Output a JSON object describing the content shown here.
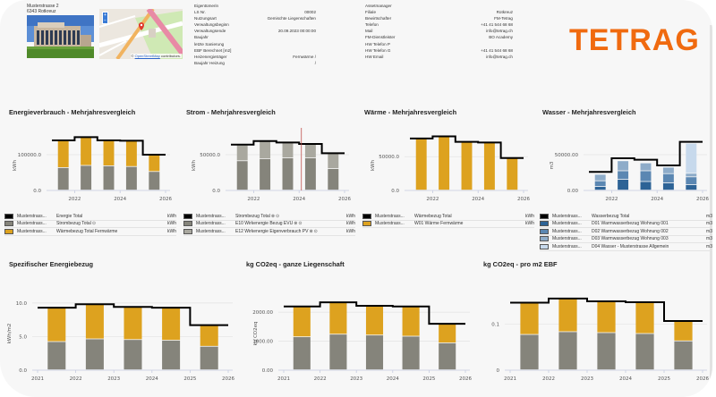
{
  "header": {
    "address_line1": "Musterstrasse 2",
    "address_line2": "6343 Rotkreuz",
    "map": {
      "zoom_in": "+",
      "zoom_out": "−",
      "attribution_prefix": "©",
      "attribution_link": "OpenStreetMap",
      "attribution_suffix": "contributors."
    },
    "property_info": [
      {
        "label": "Eigentümerin",
        "value": ""
      },
      {
        "label": "LS Nr.",
        "value": "00002"
      },
      {
        "label": "Nutzungsart",
        "value": "Gemischte Liegenschaften"
      },
      {
        "label": "Verwaltungsbeginn",
        "value": ""
      },
      {
        "label": "Verwaltungsende",
        "value": "20.09.2023 00:00:00"
      },
      {
        "label": "Baujahr",
        "value": ""
      },
      {
        "label": "letzte Sanierung",
        "value": ""
      },
      {
        "label": "EBF Berechnet [m2]",
        "value": ""
      },
      {
        "label": "Heizenergieträger",
        "value": "Fernwärme /"
      },
      {
        "label": "Baujahr Heizung",
        "value": "/"
      }
    ],
    "contact_info": [
      {
        "label": "Assetmanager",
        "value": ""
      },
      {
        "label": "Filiale",
        "value": "Rotkreuz"
      },
      {
        "label": "Bewirtschafter",
        "value": "FM-Tetrag"
      },
      {
        "label": "Telefon",
        "value": "+41 41 544 68 68"
      },
      {
        "label": "Mail",
        "value": "info@tetrag.ch"
      },
      {
        "label": "FM-Dienstleister",
        "value": "BO Academy"
      },
      {
        "label": "HW Telefon P",
        "value": ""
      },
      {
        "label": "HW Telefon G",
        "value": "+41 41 544 68 68"
      },
      {
        "label": "HW Email",
        "value": "info@tetrag.ch"
      }
    ],
    "logo": "TETRAG"
  },
  "colors": {
    "total_line": "#000000",
    "strom": "#85847b",
    "waerme": "#dda21f",
    "strom_light": "#a9a89f",
    "wasser_d01": "#2d6396",
    "wasser_d02": "#5b87b2",
    "wasser_d03": "#8eacc9",
    "wasser_d04": "#c7d9ec",
    "pv_marker": "#c0504d",
    "grid": "#e6e6e6",
    "axis": "#c5cbe0",
    "logo": "#f06a0f"
  },
  "chart_data": [
    {
      "id": "energie",
      "type": "bar",
      "title": "Energieverbrauch - Mehrjahresvergleich",
      "ylabel": "kWh",
      "xlabel": "",
      "ylim": [
        0,
        170000
      ],
      "yticks": [
        {
          "v": 0,
          "label": "0.0"
        },
        {
          "v": 100000,
          "label": "100000.0"
        }
      ],
      "xticks": [
        "2022",
        "2024",
        "2026"
      ],
      "x_range": [
        2021,
        2026
      ],
      "categories": [
        "2021",
        "2022",
        "2023",
        "2024",
        "2025"
      ],
      "stacked": true,
      "series": [
        {
          "name": "Strombezug Total",
          "color_key": "strom",
          "values": [
            63000,
            69000,
            68000,
            66000,
            52000
          ]
        },
        {
          "name": "Wärmebezug Total Fernwärme",
          "color_key": "waerme",
          "values": [
            77000,
            80000,
            72000,
            73000,
            48000
          ]
        }
      ],
      "total_line": {
        "name": "Energie Total",
        "values": [
          140000,
          149000,
          140000,
          139000,
          100000
        ]
      },
      "legend": [
        {
          "source": "Musterstrass...",
          "name": "Energie Total",
          "unit": "kWh",
          "color_key": "total_line",
          "icons": []
        },
        {
          "source": "Musterstrass...",
          "name": "Strombezug Total",
          "unit": "kWh",
          "color_key": "strom",
          "icons": [
            "info"
          ]
        },
        {
          "source": "Musterstrass...",
          "name": "Wärmebezug Total Fernwärme",
          "unit": "kWh",
          "color_key": "waerme",
          "icons": []
        }
      ]
    },
    {
      "id": "strom",
      "type": "bar",
      "title": "Strom - Mehrjahresvergleich",
      "ylabel": "kWh",
      "xlabel": "",
      "ylim": [
        0,
        85000
      ],
      "yticks": [
        {
          "v": 0,
          "label": "0.0"
        },
        {
          "v": 50000,
          "label": "50000.0"
        }
      ],
      "xticks": [
        "2022",
        "2024",
        "2026"
      ],
      "x_range": [
        2021,
        2026
      ],
      "categories": [
        "2021",
        "2022",
        "2023",
        "2024",
        "2025"
      ],
      "stacked": true,
      "series": [
        {
          "name": "E10 Wirkenergie Bezug EVU",
          "color_key": "strom",
          "values": [
            41000,
            44000,
            45000,
            45000,
            30000
          ]
        },
        {
          "name": "E12 Wirkenergie Eigenverbrauch PV",
          "color_key": "strom_light",
          "values": [
            22000,
            25000,
            21000,
            20000,
            22000
          ]
        }
      ],
      "total_line": {
        "name": "Strombezug Total",
        "values": [
          64000,
          69000,
          67000,
          65000,
          52000
        ]
      },
      "marker_x": 2024.1,
      "legend": [
        {
          "source": "Musterstrass...",
          "name": "Strombezug Total",
          "unit": "kWh",
          "color_key": "total_line",
          "icons": [
            "x-circle",
            "info"
          ]
        },
        {
          "source": "Musterstrass...",
          "name": "E10 Wirkenergie Bezug EVU",
          "unit": "kWh",
          "color_key": "strom",
          "icons": [
            "x-circle",
            "info"
          ]
        },
        {
          "source": "Musterstrass...",
          "name": "E12 Wirkenergie Eigenverbrauch PV",
          "unit": "kWh",
          "color_key": "strom_light",
          "icons": [
            "x-circle",
            "info"
          ]
        }
      ]
    },
    {
      "id": "waerme",
      "type": "bar",
      "title": "Wärme - Mehrjahresvergleich",
      "ylabel": "kWh",
      "xlabel": "",
      "ylim": [
        0,
        90000
      ],
      "yticks": [
        {
          "v": 0,
          "label": "0.0"
        },
        {
          "v": 50000,
          "label": "50000.0"
        }
      ],
      "xticks": [
        "2022",
        "2024",
        "2026"
      ],
      "x_range": [
        2021,
        2026
      ],
      "categories": [
        "2021",
        "2022",
        "2023",
        "2024",
        "2025"
      ],
      "stacked": true,
      "series": [
        {
          "name": "W01 Wärme Fernwärme",
          "color_key": "waerme",
          "values": [
            76000,
            80000,
            72000,
            72000,
            48000
          ]
        }
      ],
      "total_line": {
        "name": "Wärmebezug Total",
        "values": [
          77000,
          80000,
          72000,
          71000,
          48000
        ]
      },
      "legend": [
        {
          "source": "Musterstrass...",
          "name": "Wärmebezug Total",
          "unit": "kWh",
          "color_key": "total_line",
          "icons": []
        },
        {
          "source": "Musterstrass...",
          "name": "W01 Wärme Fernwärme",
          "unit": "kWh",
          "color_key": "waerme",
          "icons": []
        }
      ]
    },
    {
      "id": "wasser",
      "type": "bar",
      "title": "Wasser - Mehrjahresvergleich",
      "ylabel": "m3",
      "xlabel": "",
      "ylim": [
        0,
        85000
      ],
      "yticks": [
        {
          "v": 0,
          "label": "0.00"
        },
        {
          "v": 50000,
          "label": "50000.00"
        }
      ],
      "xticks": [
        "2022",
        "2024",
        "2026"
      ],
      "x_range": [
        2021,
        2026
      ],
      "categories": [
        "2021",
        "2022",
        "2023",
        "2024",
        "2025"
      ],
      "stacked": true,
      "series": [
        {
          "name": "D01 Warmwasserbezug Wohnung 001",
          "color_key": "wasser_d01",
          "values": [
            5000,
            15000,
            12000,
            10000,
            7500
          ]
        },
        {
          "name": "D02 Warmwasserbezug Wohnung 002",
          "color_key": "wasser_d02",
          "values": [
            8000,
            12000,
            15000,
            13000,
            11000
          ]
        },
        {
          "name": "D03 Warmwasserbezug Wohnung 003",
          "color_key": "wasser_d03",
          "values": [
            9000,
            14000,
            11000,
            9000,
            5000
          ]
        },
        {
          "name": "D04 Wasser - Musterstrasse Allgemein",
          "color_key": "wasser_d04",
          "values": [
            0,
            0,
            0,
            0,
            42000
          ]
        }
      ],
      "total_line": {
        "name": "Wasserbezug Total",
        "values": [
          26000,
          45000,
          43000,
          35000,
          68000
        ]
      },
      "legend": [
        {
          "source": "Musterstrass...",
          "name": "Wasserbezug Total",
          "unit": "m3",
          "color_key": "total_line",
          "icons": []
        },
        {
          "source": "Musterstrass...",
          "name": "D01 Warmwasserbezug Wohnung 001",
          "unit": "m3",
          "color_key": "wasser_d01",
          "icons": []
        },
        {
          "source": "Musterstrass...",
          "name": "D02 Warmwasserbezug Wohnung 002",
          "unit": "m3",
          "color_key": "wasser_d02",
          "icons": []
        },
        {
          "source": "Musterstrass...",
          "name": "D03 Warmwasserbezug Wohnung 003",
          "unit": "m3",
          "color_key": "wasser_d03",
          "icons": []
        },
        {
          "source": "Musterstrass...",
          "name": "D04 Wasser - Musterstrasse Allgemein",
          "unit": "m3",
          "color_key": "wasser_d04",
          "icons": []
        }
      ]
    },
    {
      "id": "spez",
      "type": "bar",
      "title": "Spezifischer Energiebezug",
      "ylabel": "kWh/m2",
      "xlabel": "",
      "ylim": [
        0,
        12.5
      ],
      "yticks": [
        {
          "v": 0,
          "label": "0.0"
        },
        {
          "v": 5,
          "label": "5.0"
        },
        {
          "v": 10,
          "label": "10.0"
        }
      ],
      "xticks": [
        "2021",
        "2022",
        "2023",
        "2024",
        "2025",
        "2026"
      ],
      "x_range": [
        2021,
        2026
      ],
      "categories": [
        "2021",
        "2022",
        "2023",
        "2024",
        "2025"
      ],
      "stacked": true,
      "series": [
        {
          "name": "Strom",
          "color_key": "strom",
          "values": [
            4.2,
            4.6,
            4.5,
            4.4,
            3.5
          ]
        },
        {
          "name": "Wärme",
          "color_key": "waerme",
          "values": [
            5.1,
            5.2,
            4.9,
            4.9,
            3.2
          ]
        }
      ],
      "total_line": {
        "name": "Total",
        "values": [
          9.3,
          9.8,
          9.4,
          9.3,
          6.7
        ]
      },
      "legend": []
    },
    {
      "id": "co2_total",
      "type": "bar",
      "title": "kg CO2eq - ganze Liegenschaft",
      "ylabel": "kg CO2eq",
      "xlabel": "",
      "ylim": [
        0,
        2900
      ],
      "yticks": [
        {
          "v": 0,
          "label": "0.00"
        },
        {
          "v": 1000,
          "label": "1000.00"
        },
        {
          "v": 2000,
          "label": "2000.00"
        }
      ],
      "xticks": [
        "2021",
        "2022",
        "2023",
        "2024",
        "2025",
        "2026"
      ],
      "x_range": [
        2021,
        2026
      ],
      "categories": [
        "2021",
        "2022",
        "2023",
        "2024",
        "2025"
      ],
      "stacked": true,
      "series": [
        {
          "name": "Strom",
          "color_key": "strom",
          "values": [
            1140,
            1230,
            1200,
            1160,
            930
          ]
        },
        {
          "name": "Wärme",
          "color_key": "waerme",
          "values": [
            1060,
            1110,
            1020,
            1040,
            650
          ]
        }
      ],
      "total_line": {
        "name": "Total",
        "values": [
          2200,
          2340,
          2220,
          2200,
          1600
        ]
      },
      "legend": []
    },
    {
      "id": "co2_m2",
      "type": "bar",
      "title": "kg CO2eq - pro m2 EBF",
      "ylabel": "",
      "xlabel": "",
      "ylim": [
        0,
        0.183
      ],
      "yticks": [
        {
          "v": 0,
          "label": "0"
        },
        {
          "v": 0.1,
          "label": "0.1"
        }
      ],
      "xticks": [
        "2021",
        "2022",
        "2023",
        "2024",
        "2025",
        "2026"
      ],
      "x_range": [
        2021,
        2026
      ],
      "categories": [
        "2021",
        "2022",
        "2023",
        "2024",
        "2025"
      ],
      "stacked": true,
      "series": [
        {
          "name": "Strom",
          "color_key": "strom",
          "values": [
            0.077,
            0.083,
            0.081,
            0.079,
            0.063
          ]
        },
        {
          "name": "Wärme",
          "color_key": "waerme",
          "values": [
            0.069,
            0.073,
            0.069,
            0.069,
            0.043
          ]
        }
      ],
      "total_line": {
        "name": "Total",
        "values": [
          0.147,
          0.156,
          0.15,
          0.148,
          0.107
        ]
      },
      "legend": []
    }
  ]
}
